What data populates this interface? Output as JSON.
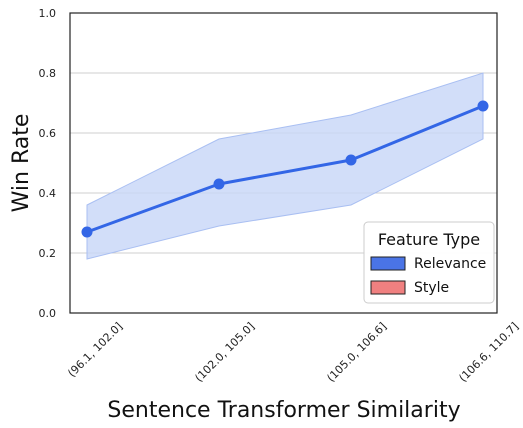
{
  "chart_data": {
    "type": "line",
    "categories": [
      "(96.1, 102.0]",
      "(102.0, 105.0]",
      "(105.0, 106.6]",
      "(106.6, 110.7]"
    ],
    "series": [
      {
        "name": "Relevance",
        "values": [
          0.27,
          0.43,
          0.51,
          0.69
        ],
        "band_lower": [
          0.18,
          0.29,
          0.36,
          0.58
        ],
        "band_upper": [
          0.36,
          0.58,
          0.66,
          0.8
        ],
        "color": "#3366e6",
        "band_color": "#c7d6f7"
      }
    ],
    "xlabel": "Sentence Transformer Similarity",
    "ylabel": "Win Rate",
    "ylim": [
      0.0,
      1.0
    ],
    "yticks": [
      "0.0",
      "0.2",
      "0.4",
      "0.6",
      "0.8",
      "1.0"
    ],
    "grid": true,
    "legend": {
      "title": "Feature Type",
      "placement": "bottom-right",
      "entries": [
        {
          "label": "Relevance",
          "color": "#4a74e6"
        },
        {
          "label": "Style",
          "color": "#f08080"
        }
      ]
    }
  }
}
